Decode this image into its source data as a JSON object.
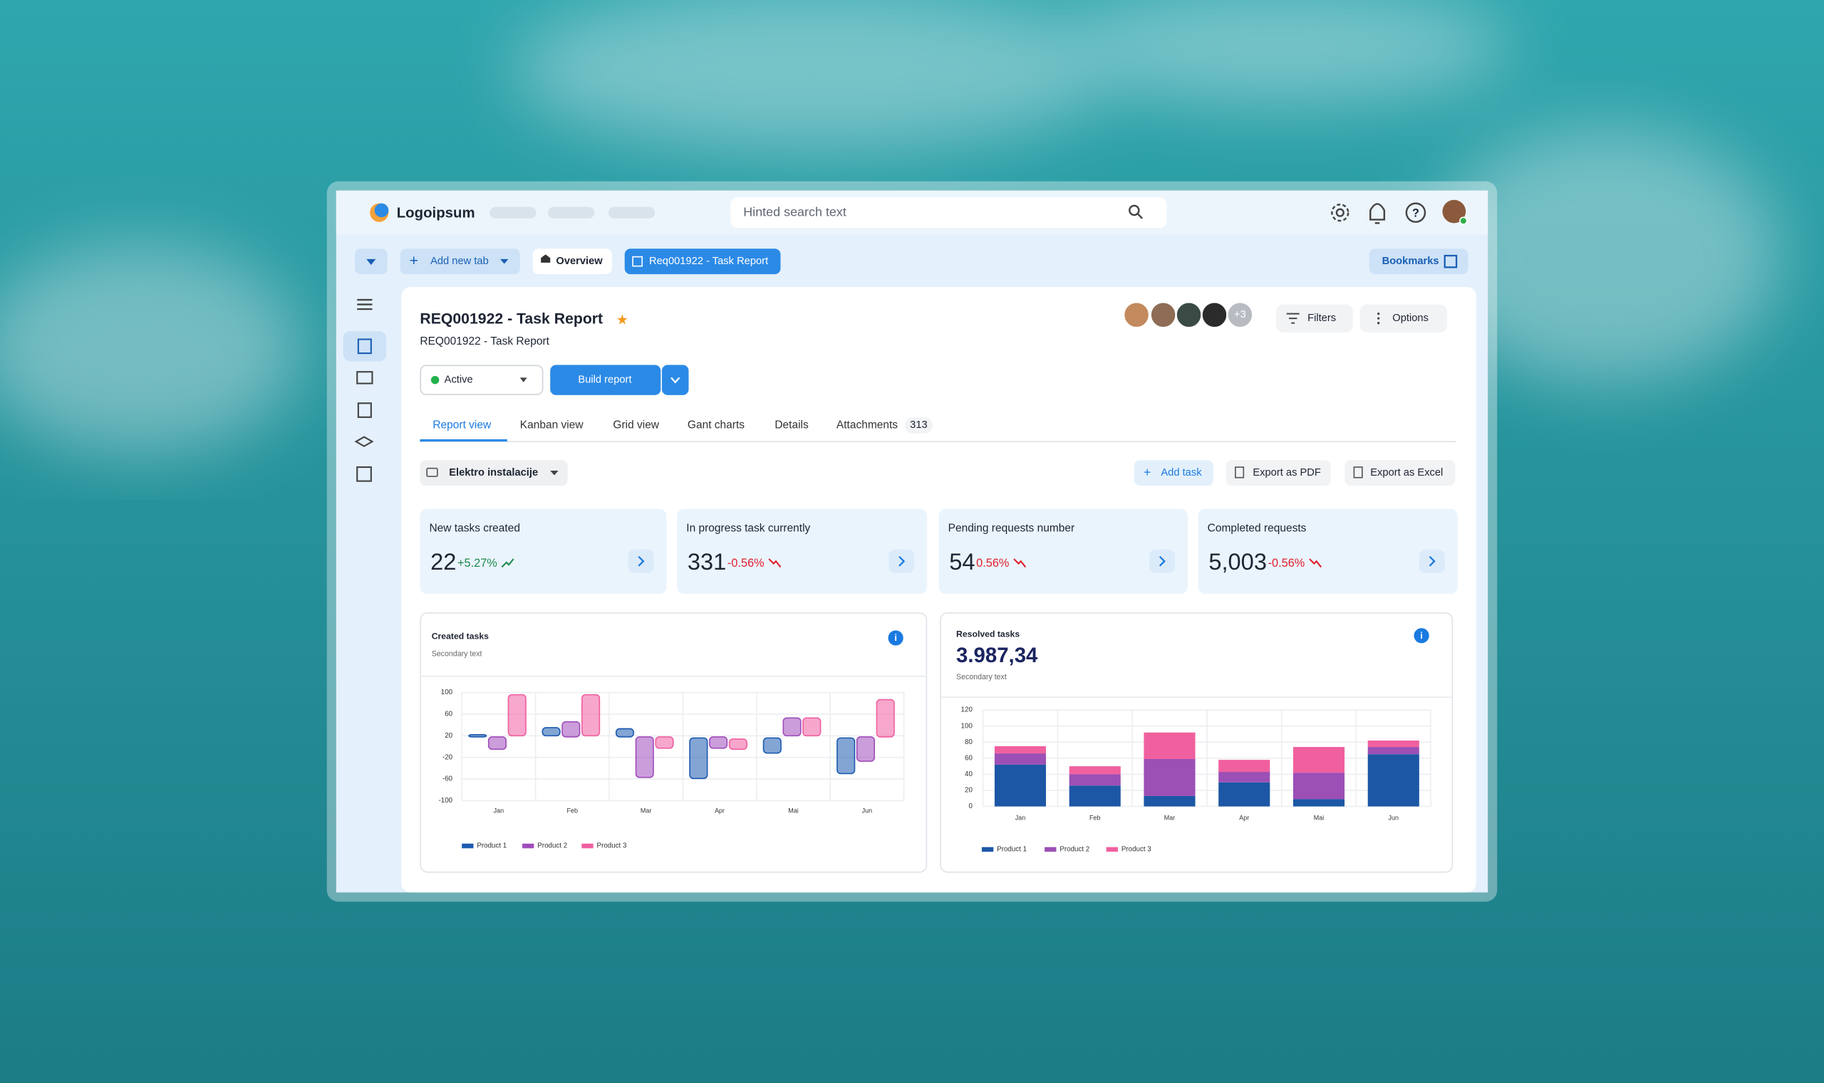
{
  "header": {
    "logo": "Logoipsum",
    "search_placeholder": "Hinted search text"
  },
  "tabs": {
    "add": "Add new tab",
    "overview": "Overview",
    "current": "Req001922 - Task Report",
    "bookmarks": "Bookmarks"
  },
  "page": {
    "title": "REQ001922 - Task Report",
    "subtitle": "REQ001922 - Task Report",
    "status": "Active",
    "build": "Build report",
    "avatars_more": "+3",
    "filters": "Filters",
    "options": "Options"
  },
  "nav_tabs": [
    "Report view",
    "Kanban view",
    "Grid view",
    "Gant charts",
    "Details",
    "Attachments"
  ],
  "attachments_count": 313,
  "toolbar": {
    "project": "Elektro instalacije",
    "add_task": "Add task",
    "export_pdf": "Export as PDF",
    "export_excel": "Export as Excel"
  },
  "kpis": [
    {
      "label": "New tasks created",
      "value": "22",
      "change": "+5.27%"
    },
    {
      "label": "In progress task currently",
      "value": "331",
      "change": "-0.56%"
    },
    {
      "label": "Pending requests number",
      "value": "54",
      "change": "0.56%"
    },
    {
      "label": "Completed requests",
      "value": "5,003",
      "change": "-0.56%"
    }
  ],
  "charts": [
    {
      "type": "floating-bar",
      "title": "Created tasks",
      "subtitle": "Secondary text",
      "categories": [
        "Jan",
        "Feb",
        "Mar",
        "Apr",
        "Mai",
        "Jun"
      ],
      "ylim": [
        -100,
        100
      ],
      "yticks": [
        100,
        60,
        20,
        -20,
        -60,
        -100
      ],
      "series": [
        {
          "name": "Product 1",
          "color": "#1d5bb0",
          "low": [
            18,
            20,
            18,
            -59,
            -12,
            -50
          ],
          "high": [
            22,
            35,
            33,
            16,
            16,
            16
          ]
        },
        {
          "name": "Product 2",
          "color": "#a04dbb",
          "low": [
            -5,
            18,
            -57,
            -3,
            20,
            -27
          ],
          "high": [
            18,
            46,
            18,
            18,
            53,
            18
          ]
        },
        {
          "name": "Product 3",
          "color": "#f05fa0",
          "low": [
            20,
            20,
            -3,
            -5,
            20,
            18
          ],
          "high": [
            96,
            96,
            18,
            14,
            53,
            87
          ]
        }
      ]
    },
    {
      "type": "stacked-bar",
      "title": "Resolved tasks",
      "value": "3.987,34",
      "subtitle": "Secondary text",
      "categories": [
        "Jan",
        "Feb",
        "Mar",
        "Apr",
        "Mai",
        "Jun"
      ],
      "ylim": [
        0,
        120
      ],
      "yticks": [
        0,
        20,
        40,
        60,
        80,
        100,
        120
      ],
      "series": [
        {
          "name": "Product 1",
          "color": "#1c57a5",
          "values": [
            52,
            26,
            13,
            30,
            9,
            65
          ]
        },
        {
          "name": "Product 2",
          "color": "#9c4fb5",
          "values": [
            14,
            14,
            46,
            13,
            33,
            9
          ]
        },
        {
          "name": "Product 3",
          "color": "#f0609e",
          "values": [
            9,
            10,
            33,
            15,
            32,
            8
          ]
        }
      ]
    }
  ]
}
